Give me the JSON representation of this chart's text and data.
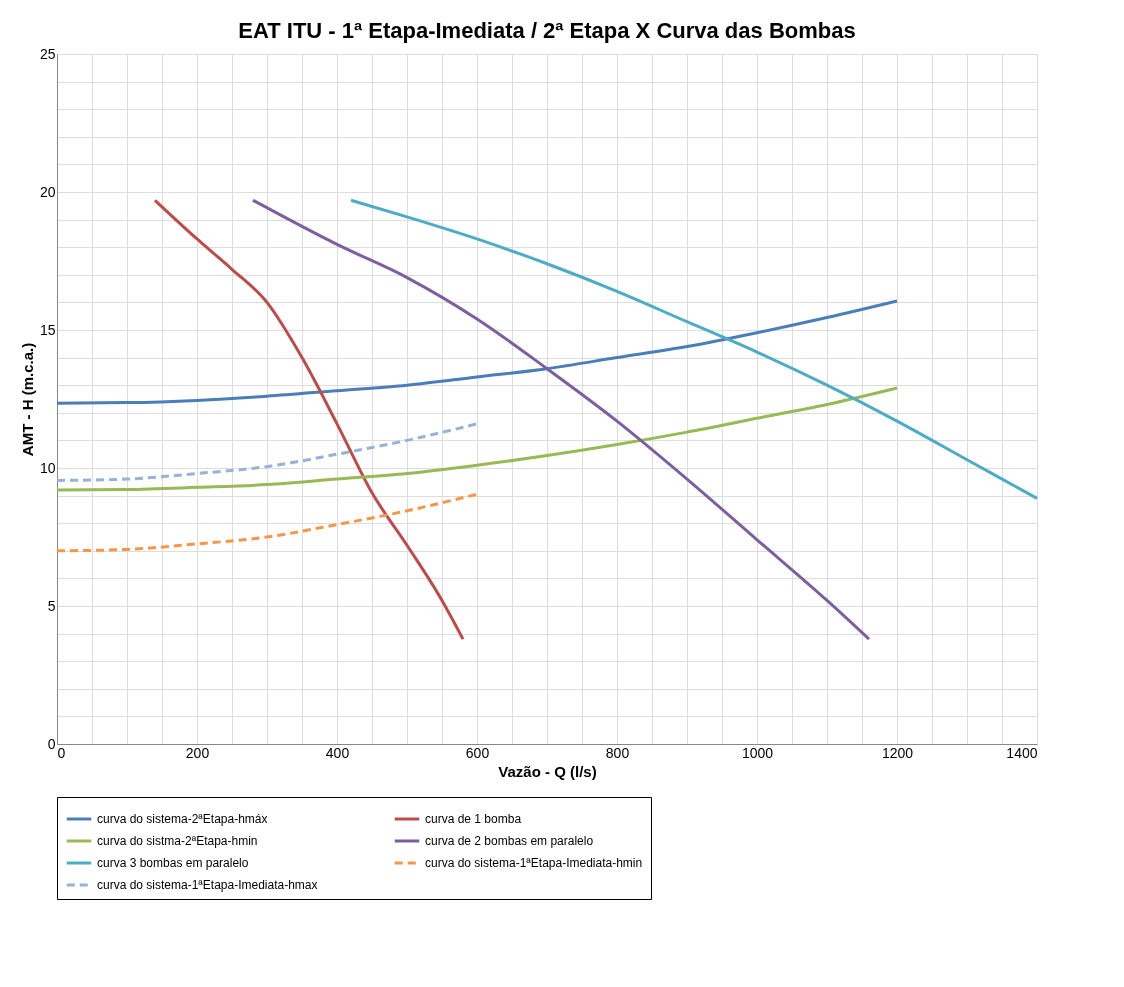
{
  "chart_data": {
    "type": "line",
    "title": "EAT ITU   -   1ª Etapa-Imediata / 2ª Etapa   X  Curva das Bombas",
    "xlabel": "Vazão - Q (l/s)",
    "ylabel": "AMT - H (m.c.a.)",
    "xlim": [
      0,
      1400
    ],
    "ylim": [
      0,
      25
    ],
    "xticks": [
      0,
      {
        "value": 50,
        "label": null
      },
      {
        "value": 100,
        "label": null
      },
      {
        "value": 150,
        "label": null
      },
      200,
      {
        "value": 250,
        "label": null
      },
      {
        "value": 300,
        "label": null
      },
      {
        "value": 350,
        "label": null
      },
      400,
      {
        "value": 450,
        "label": null
      },
      {
        "value": 500,
        "label": null
      },
      {
        "value": 550,
        "label": null
      },
      600,
      {
        "value": 650,
        "label": null
      },
      {
        "value": 700,
        "label": null
      },
      {
        "value": 750,
        "label": null
      },
      800,
      {
        "value": 850,
        "label": null
      },
      {
        "value": 900,
        "label": null
      },
      {
        "value": 950,
        "label": null
      },
      1000,
      {
        "value": 1050,
        "label": null
      },
      {
        "value": 1100,
        "label": null
      },
      {
        "value": 1150,
        "label": null
      },
      1200,
      {
        "value": 1250,
        "label": null
      },
      {
        "value": 1300,
        "label": null
      },
      {
        "value": 1350,
        "label": null
      },
      1400
    ],
    "yticks": [
      0,
      {
        "value": 1,
        "label": null
      },
      {
        "value": 2,
        "label": null
      },
      {
        "value": 3,
        "label": null
      },
      {
        "value": 4,
        "label": null
      },
      5,
      {
        "value": 6,
        "label": null
      },
      {
        "value": 7,
        "label": null
      },
      {
        "value": 8,
        "label": null
      },
      {
        "value": 9,
        "label": null
      },
      10,
      {
        "value": 11,
        "label": null
      },
      {
        "value": 12,
        "label": null
      },
      {
        "value": 13,
        "label": null
      },
      {
        "value": 14,
        "label": null
      },
      15,
      {
        "value": 16,
        "label": null
      },
      {
        "value": 17,
        "label": null
      },
      {
        "value": 18,
        "label": null
      },
      {
        "value": 19,
        "label": null
      },
      20,
      {
        "value": 21,
        "label": null
      },
      {
        "value": 22,
        "label": null
      },
      {
        "value": 23,
        "label": null
      },
      {
        "value": 24,
        "label": null
      },
      25
    ],
    "grid": true,
    "legend": "bottom",
    "marker": "none",
    "series": [
      {
        "name": "curva do sistema-2ªEtapa-hmáx",
        "color": "#4a7ebb",
        "line_style": "solid",
        "x": [
          0,
          100,
          200,
          300,
          400,
          500,
          600,
          700,
          800,
          900,
          1000,
          1100,
          1200
        ],
        "values": [
          12.35,
          12.37,
          12.45,
          12.6,
          12.8,
          13.0,
          13.3,
          13.6,
          14.0,
          14.4,
          14.9,
          15.45,
          16.05
        ]
      },
      {
        "name": "curva de 1  bomba",
        "color": "#be4b48",
        "line_style": "solid",
        "x": [
          140,
          200,
          250,
          300,
          350,
          400,
          450,
          500,
          550,
          580
        ],
        "values": [
          19.7,
          18.3,
          17.2,
          16.0,
          14.0,
          11.6,
          9.1,
          7.2,
          5.2,
          3.8
        ]
      },
      {
        "name": "curva do sistma-2ªEtapa-hmin",
        "color": "#98b954",
        "line_style": "solid",
        "x": [
          0,
          100,
          200,
          300,
          400,
          500,
          600,
          700,
          800,
          900,
          1000,
          1100,
          1200
        ],
        "values": [
          9.2,
          9.22,
          9.3,
          9.4,
          9.6,
          9.8,
          10.1,
          10.45,
          10.85,
          11.3,
          11.8,
          12.3,
          12.9
        ]
      },
      {
        "name": "curva de 2 bombas em paralelo",
        "color": "#7d5fa0",
        "line_style": "solid",
        "x": [
          280,
          400,
          500,
          600,
          700,
          800,
          900,
          1000,
          1100,
          1160
        ],
        "values": [
          19.7,
          18.1,
          16.9,
          15.4,
          13.6,
          11.7,
          9.6,
          7.4,
          5.2,
          3.8
        ]
      },
      {
        "name": "curva 3 bombas em paralelo",
        "color": "#4bacc6",
        "line_style": "solid",
        "x": [
          420,
          500,
          600,
          700,
          800,
          900,
          1000,
          1100,
          1200,
          1300,
          1400
        ],
        "values": [
          19.7,
          19.1,
          18.3,
          17.4,
          16.4,
          15.3,
          14.2,
          13.0,
          11.7,
          10.3,
          8.9
        ]
      },
      {
        "name": "curva do sistema-1ªEtapa-Imediata-hmin",
        "color": "#f79646",
        "line_style": "dashed",
        "x": [
          0,
          100,
          200,
          300,
          400,
          500,
          600
        ],
        "values": [
          7.0,
          7.05,
          7.25,
          7.5,
          7.95,
          8.45,
          9.05
        ]
      },
      {
        "name": "curva do sistema-1ªEtapa-Imediata-hmax",
        "color": "#95b3d7",
        "line_style": "dashed",
        "x": [
          0,
          100,
          200,
          300,
          400,
          500,
          600
        ],
        "values": [
          9.55,
          9.6,
          9.8,
          10.05,
          10.5,
          11.0,
          11.6
        ]
      }
    ]
  }
}
